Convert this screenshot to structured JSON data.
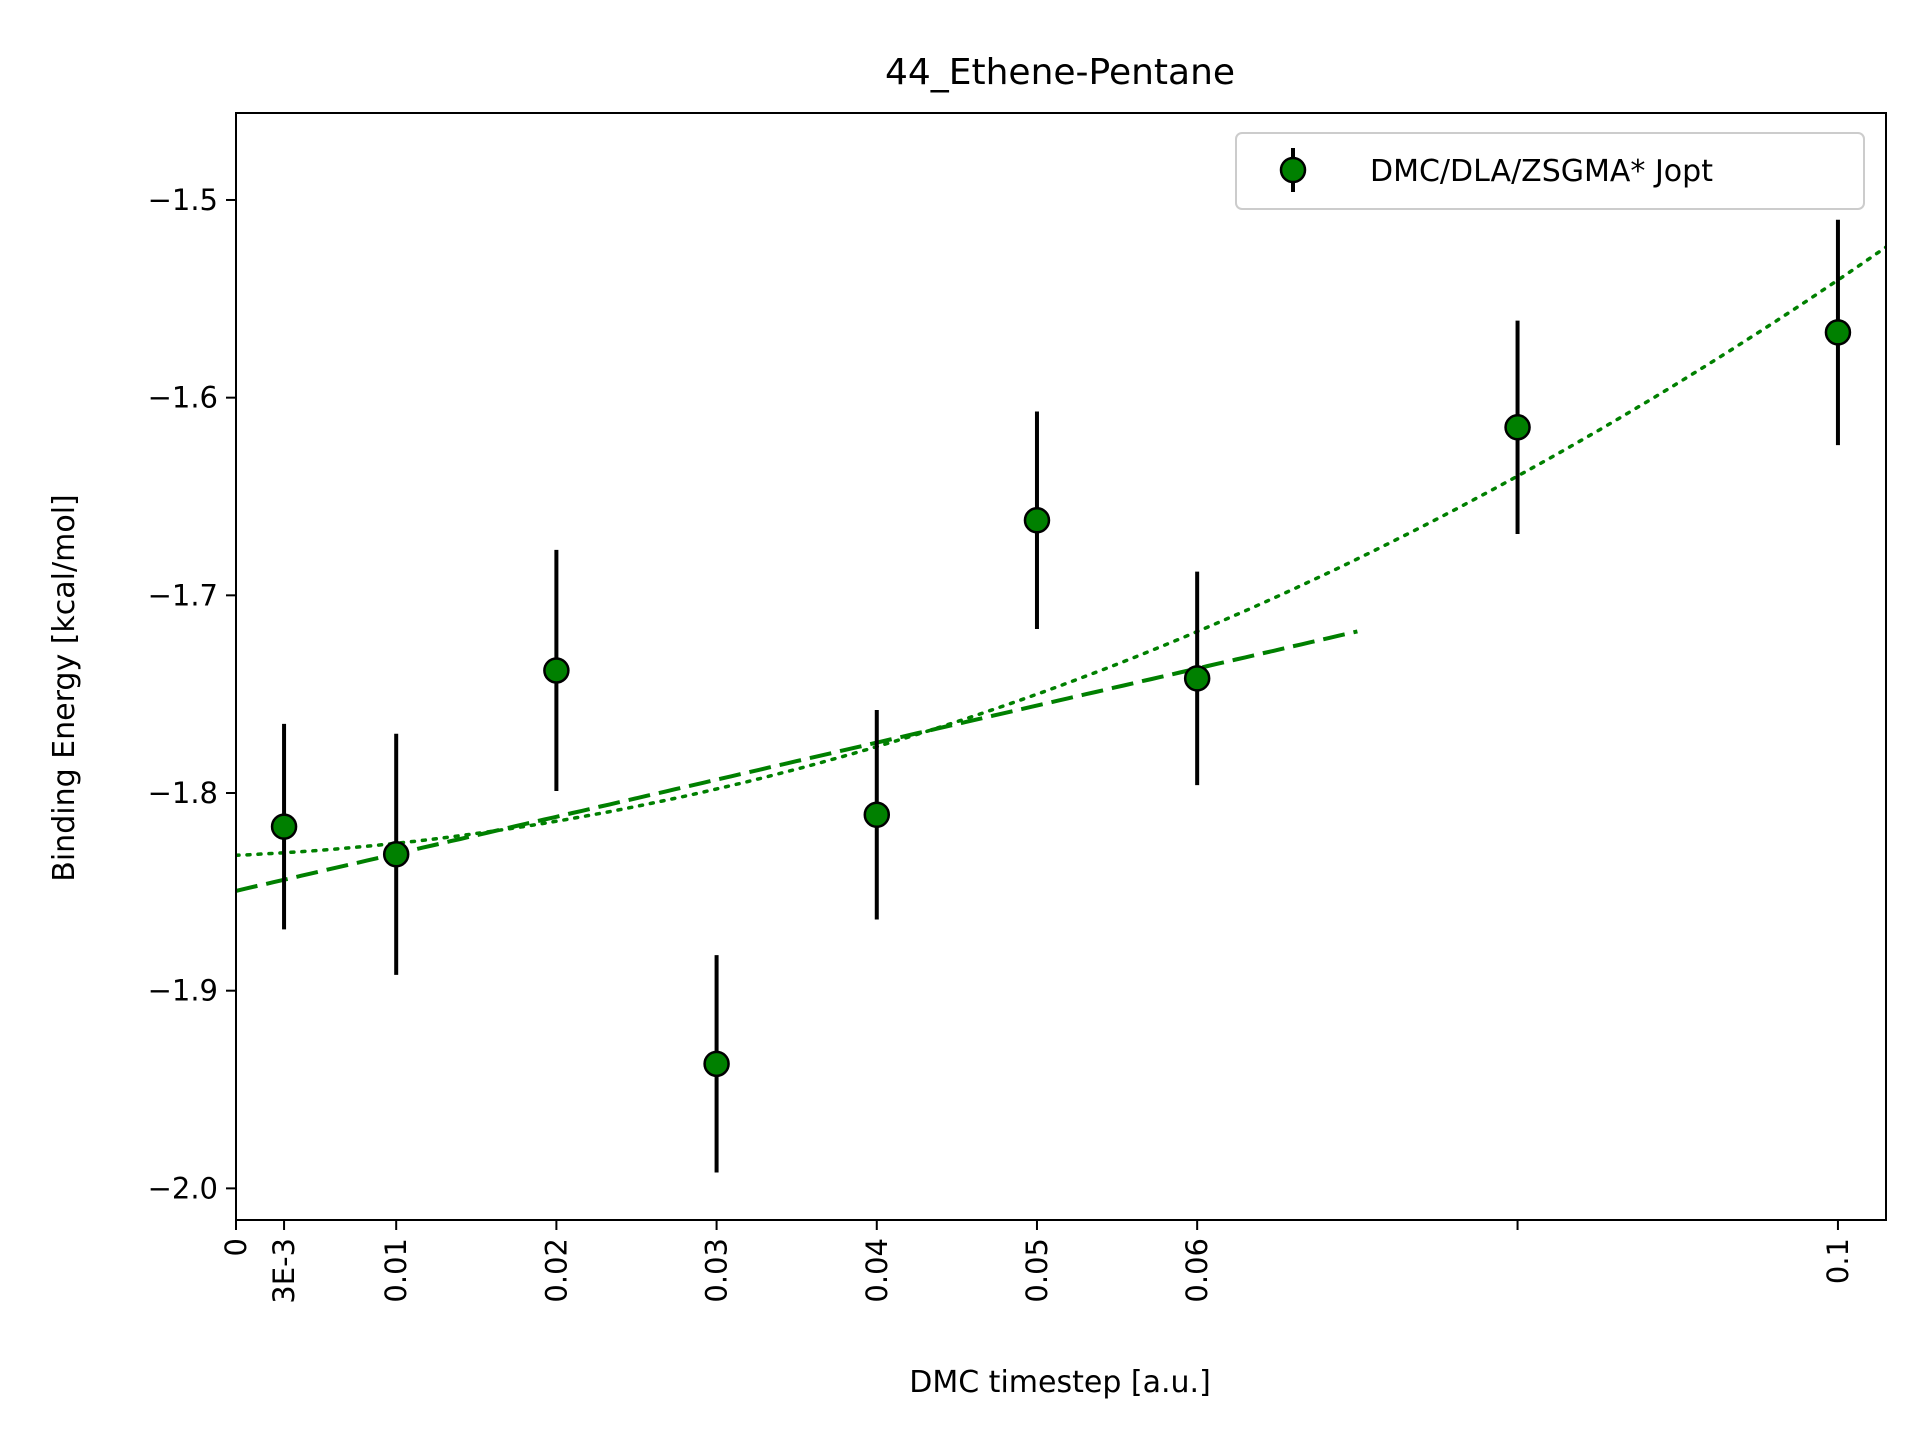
{
  "chart_data": {
    "type": "scatter",
    "title": "44_Ethene-Pentane",
    "xlabel": "DMC timestep [a.u.]",
    "ylabel": "Binding Energy [kcal/mol]",
    "xlim": [
      0,
      0.103
    ],
    "ylim": [
      -2.016,
      -1.456
    ],
    "x_ticks": [
      {
        "value": 0,
        "label": "0"
      },
      {
        "value": 0.003,
        "label": "3E-3"
      },
      {
        "value": 0.01,
        "label": "0.01"
      },
      {
        "value": 0.02,
        "label": "0.02"
      },
      {
        "value": 0.03,
        "label": "0.03"
      },
      {
        "value": 0.04,
        "label": "0.04"
      },
      {
        "value": 0.05,
        "label": "0.05"
      },
      {
        "value": 0.06,
        "label": "0.06"
      },
      {
        "value": 0.08,
        "label": ""
      },
      {
        "value": 0.1,
        "label": "0.1"
      }
    ],
    "y_ticks": [
      {
        "value": -1.5,
        "label": "−1.5"
      },
      {
        "value": -1.6,
        "label": "−1.6"
      },
      {
        "value": -1.7,
        "label": "−1.7"
      },
      {
        "value": -1.8,
        "label": "−1.8"
      },
      {
        "value": -1.9,
        "label": "−1.9"
      },
      {
        "value": -2.0,
        "label": "−2.0"
      }
    ],
    "legend": {
      "position": "top-right",
      "entries": [
        "DMC/DLA/ZSGMA* Jopt"
      ]
    },
    "series": [
      {
        "name": "DMC/DLA/ZSGMA* Jopt",
        "color": "#008000",
        "points": [
          {
            "x": 0.003,
            "y": -1.817,
            "err": 0.052
          },
          {
            "x": 0.01,
            "y": -1.831,
            "err": 0.061
          },
          {
            "x": 0.02,
            "y": -1.738,
            "err": 0.061
          },
          {
            "x": 0.03,
            "y": -1.937,
            "err": 0.055
          },
          {
            "x": 0.04,
            "y": -1.811,
            "err": 0.053
          },
          {
            "x": 0.05,
            "y": -1.662,
            "err": 0.055
          },
          {
            "x": 0.06,
            "y": -1.742,
            "err": 0.054
          },
          {
            "x": 0.08,
            "y": -1.615,
            "err": 0.054
          },
          {
            "x": 0.1,
            "y": -1.567,
            "err": 0.057
          }
        ]
      }
    ],
    "fits": [
      {
        "name": "linear fit",
        "style": "dashed",
        "color": "#008000",
        "x_range": [
          0,
          0.07
        ],
        "coeffs": [
          -1.8495,
          1.875
        ]
      },
      {
        "name": "quadratic fit",
        "style": "dotted",
        "color": "#008000",
        "x_range": [
          0,
          0.103
        ],
        "coeffs": [
          -1.8315,
          0.35,
          25.6
        ]
      }
    ]
  }
}
